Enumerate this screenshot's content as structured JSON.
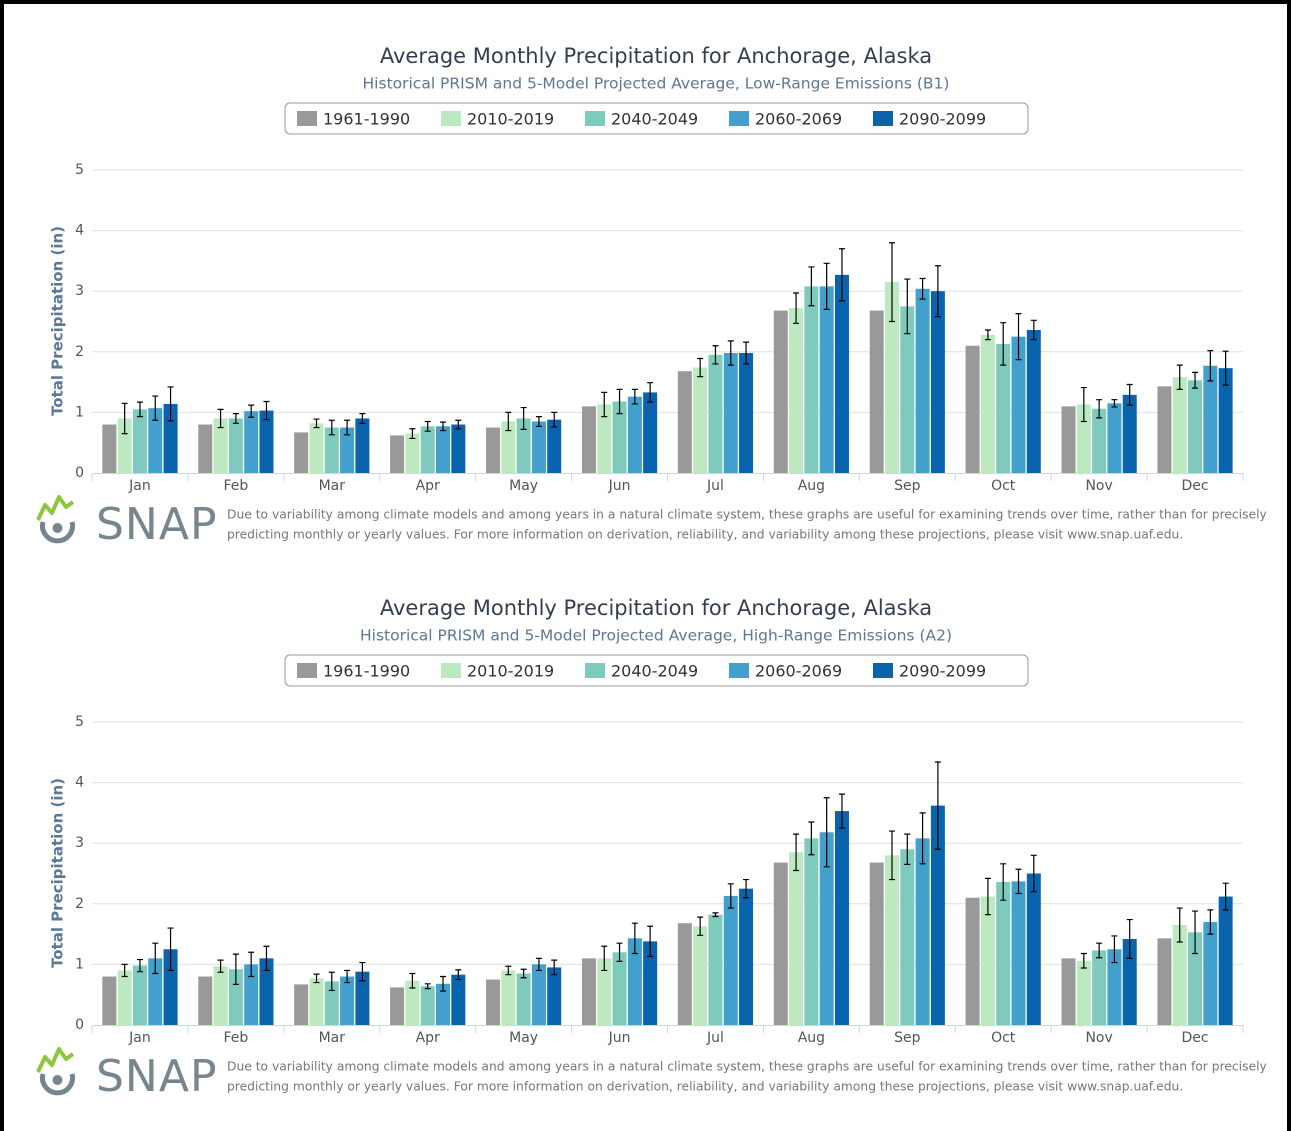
{
  "chart_data": [
    {
      "type": "bar",
      "title": "Average Monthly Precipitation for Anchorage, Alaska",
      "subtitle": "Historical PRISM and 5-Model Projected Average, Low-Range Emissions (B1)",
      "ylabel": "Total Precipitation (in)",
      "categories": [
        "Jan",
        "Feb",
        "Mar",
        "Apr",
        "May",
        "Jun",
        "Jul",
        "Aug",
        "Sep",
        "Oct",
        "Nov",
        "Dec"
      ],
      "ylim": [
        0,
        5
      ],
      "yticks": [
        0,
        1,
        2,
        3,
        4,
        5
      ],
      "grid": true,
      "series": [
        {
          "name": "1961-1990",
          "color": "#999999",
          "values": [
            0.8,
            0.8,
            0.67,
            0.62,
            0.75,
            1.1,
            1.68,
            2.68,
            2.68,
            2.1,
            1.1,
            1.43
          ],
          "errors": [
            null,
            null,
            null,
            null,
            null,
            null,
            null,
            null,
            null,
            null,
            null,
            null
          ]
        },
        {
          "name": "2010-2019",
          "color": "#bde9c0",
          "values": [
            0.9,
            0.9,
            0.82,
            0.65,
            0.85,
            1.13,
            1.74,
            2.72,
            3.15,
            2.28,
            1.13,
            1.58
          ],
          "errors": [
            0.25,
            0.15,
            0.07,
            0.08,
            0.15,
            0.2,
            0.15,
            0.25,
            0.65,
            0.08,
            0.28,
            0.2
          ]
        },
        {
          "name": "2040-2049",
          "color": "#7ecbbd",
          "values": [
            1.05,
            0.9,
            0.75,
            0.77,
            0.9,
            1.18,
            1.95,
            3.08,
            2.75,
            2.13,
            1.06,
            1.53
          ],
          "errors": [
            0.12,
            0.08,
            0.12,
            0.08,
            0.18,
            0.2,
            0.15,
            0.32,
            0.45,
            0.35,
            0.15,
            0.13
          ]
        },
        {
          "name": "2060-2069",
          "color": "#42a0cc",
          "values": [
            1.07,
            1.02,
            0.75,
            0.77,
            0.85,
            1.26,
            1.98,
            3.08,
            3.04,
            2.25,
            1.15,
            1.77
          ],
          "errors": [
            0.2,
            0.1,
            0.12,
            0.07,
            0.08,
            0.12,
            0.2,
            0.38,
            0.17,
            0.38,
            0.06,
            0.25
          ]
        },
        {
          "name": "2090-2099",
          "color": "#0a64ad",
          "values": [
            1.14,
            1.03,
            0.9,
            0.8,
            0.88,
            1.33,
            1.98,
            3.27,
            3.0,
            2.36,
            1.29,
            1.73
          ],
          "errors": [
            0.28,
            0.15,
            0.08,
            0.07,
            0.12,
            0.16,
            0.18,
            0.43,
            0.42,
            0.16,
            0.17,
            0.28
          ]
        }
      ],
      "logo_text": "SNAP",
      "note": [
        "Due to variability among climate models and among years in a natural climate system, these graphs are useful for examining trends over time, rather than for precisely",
        "predicting monthly or yearly values. For more information on derivation, reliability, and variability among these projections, please visit www.snap.uaf.edu."
      ]
    },
    {
      "type": "bar",
      "title": "Average Monthly Precipitation for Anchorage, Alaska",
      "subtitle": "Historical PRISM and 5-Model Projected Average, High-Range Emissions (A2)",
      "ylabel": "Total Precipitation (in)",
      "categories": [
        "Jan",
        "Feb",
        "Mar",
        "Apr",
        "May",
        "Jun",
        "Jul",
        "Aug",
        "Sep",
        "Oct",
        "Nov",
        "Dec"
      ],
      "ylim": [
        0,
        5
      ],
      "yticks": [
        0,
        1,
        2,
        3,
        4,
        5
      ],
      "grid": true,
      "series": [
        {
          "name": "1961-1990",
          "color": "#999999",
          "values": [
            0.8,
            0.8,
            0.67,
            0.62,
            0.75,
            1.1,
            1.68,
            2.68,
            2.68,
            2.1,
            1.1,
            1.43
          ],
          "errors": [
            null,
            null,
            null,
            null,
            null,
            null,
            null,
            null,
            null,
            null,
            null,
            null
          ]
        },
        {
          "name": "2010-2019",
          "color": "#bde9c0",
          "values": [
            0.9,
            0.97,
            0.77,
            0.73,
            0.9,
            1.1,
            1.63,
            2.85,
            2.8,
            2.12,
            1.06,
            1.65
          ],
          "errors": [
            0.1,
            0.1,
            0.07,
            0.12,
            0.07,
            0.2,
            0.15,
            0.3,
            0.4,
            0.3,
            0.12,
            0.28
          ]
        },
        {
          "name": "2040-2049",
          "color": "#7ecbbd",
          "values": [
            0.98,
            0.92,
            0.72,
            0.64,
            0.85,
            1.2,
            1.82,
            3.08,
            2.9,
            2.36,
            1.23,
            1.53
          ],
          "errors": [
            0.1,
            0.25,
            0.15,
            0.04,
            0.07,
            0.15,
            0.03,
            0.27,
            0.25,
            0.3,
            0.12,
            0.35
          ]
        },
        {
          "name": "2060-2069",
          "color": "#42a0cc",
          "values": [
            1.1,
            1.0,
            0.8,
            0.68,
            1.0,
            1.43,
            2.13,
            3.18,
            3.08,
            2.37,
            1.25,
            1.7
          ],
          "errors": [
            0.25,
            0.2,
            0.1,
            0.12,
            0.1,
            0.25,
            0.2,
            0.57,
            0.42,
            0.2,
            0.22,
            0.2
          ]
        },
        {
          "name": "2090-2099",
          "color": "#0a64ad",
          "values": [
            1.25,
            1.1,
            0.88,
            0.83,
            0.95,
            1.38,
            2.25,
            3.53,
            3.62,
            2.5,
            1.42,
            2.12
          ],
          "errors": [
            0.35,
            0.2,
            0.15,
            0.08,
            0.12,
            0.25,
            0.15,
            0.28,
            0.72,
            0.3,
            0.32,
            0.22
          ]
        }
      ],
      "logo_text": "SNAP",
      "note": [
        "Due to variability among climate models and among years in a natural climate system, these graphs are useful for examining trends over time, rather than for precisely",
        "predicting monthly or yearly values. For more information on derivation, reliability, and variability among these projections, please visit www.snap.uaf.edu."
      ]
    }
  ]
}
